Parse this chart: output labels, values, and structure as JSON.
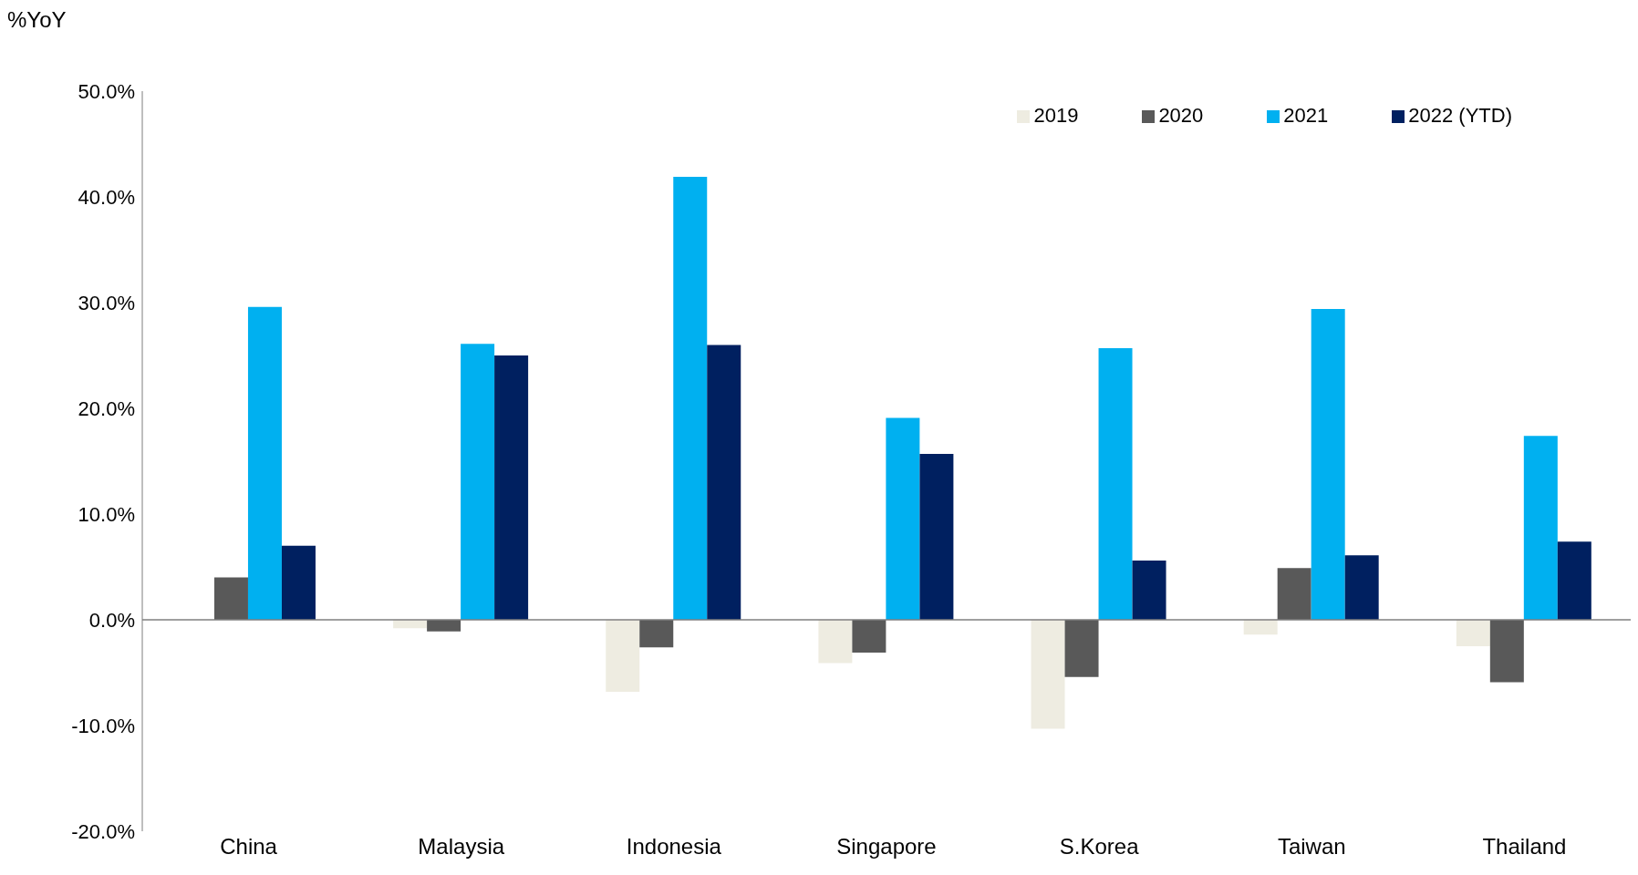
{
  "chart_data": {
    "type": "bar",
    "ylabel": "%YoY",
    "categories": [
      "China",
      "Malaysia",
      "Indonesia",
      "Singapore",
      "S.Korea",
      "Taiwan",
      "Thailand"
    ],
    "series": [
      {
        "name": "2019",
        "color": "#eeece1",
        "values": [
          null,
          -0.8,
          -6.8,
          -4.1,
          -10.3,
          -1.4,
          -2.5
        ]
      },
      {
        "name": "2020",
        "color": "#595959",
        "values": [
          4.0,
          -1.1,
          -2.6,
          -3.1,
          -5.4,
          4.9,
          -5.9
        ]
      },
      {
        "name": "2021",
        "color": "#00b0f0",
        "values": [
          29.6,
          26.1,
          41.9,
          19.1,
          25.7,
          29.4,
          17.4
        ]
      },
      {
        "name": "2022 (YTD)",
        "color": "#002060",
        "values": [
          7.0,
          25.0,
          26.0,
          15.7,
          5.6,
          6.1,
          7.4
        ]
      }
    ],
    "ylim": [
      -20,
      50
    ],
    "yticks": [
      {
        "value": -20,
        "label": "-20.0%"
      },
      {
        "value": -10,
        "label": "-10.0%"
      },
      {
        "value": 0,
        "label": "0.0%"
      },
      {
        "value": 10,
        "label": "10.0%"
      },
      {
        "value": 20,
        "label": "20.0%"
      },
      {
        "value": 30,
        "label": "30.0%"
      },
      {
        "value": 40,
        "label": "40.0%"
      },
      {
        "value": 50,
        "label": "50.0%"
      }
    ],
    "legend": "top right"
  }
}
